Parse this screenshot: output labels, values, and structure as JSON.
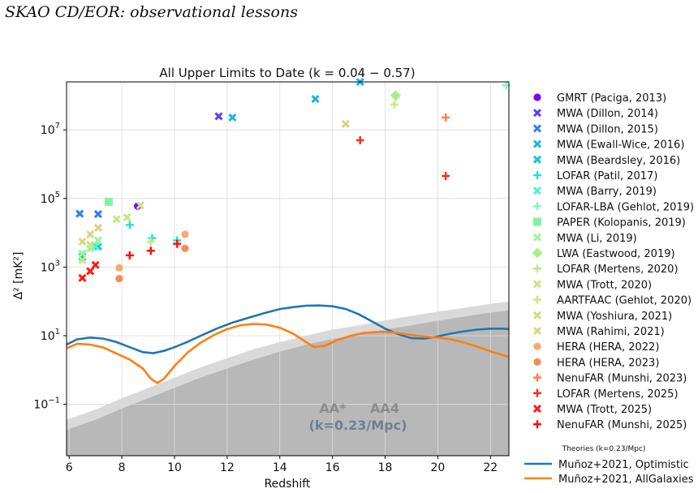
{
  "header": {
    "title": "SKAO CD/EOR: observational lessons"
  },
  "chart_data": {
    "type": "scatter",
    "title": "All Upper Limits to Date (k = 0.04 − 0.57)",
    "xlabel": "Redshift",
    "ylabel": "Δ² [mK²]",
    "xlim": [
      5.9,
      22.7
    ],
    "ylim_log10": [
      -2.5,
      3.4
    ],
    "x_ticks": [
      6,
      8,
      10,
      12,
      14,
      16,
      18,
      20,
      22
    ],
    "y_ticks": [
      {
        "label": "10",
        "exp": "−1",
        "value": 0.1
      },
      {
        "label": "10",
        "exp": "1",
        "value": 10
      },
      {
        "label": "10",
        "exp": "3",
        "value": 1000
      },
      {
        "label": "10",
        "exp": "5",
        "value": 100000
      },
      {
        "label": "10",
        "exp": "7",
        "value": 10000000
      }
    ],
    "grid": true,
    "legend_position": "right, outside plot",
    "series": [
      {
        "name": "GMRT (Paciga, 2013)",
        "marker": "circle",
        "color": "#8000ff",
        "points": [
          [
            8.6,
            60000
          ]
        ]
      },
      {
        "name": "MWA (Dillon, 2014)",
        "marker": "x",
        "color": "#5a3ff2",
        "points": [
          [
            11.68,
            25000000
          ]
        ]
      },
      {
        "name": "MWA (Dillon, 2015)",
        "marker": "x",
        "color": "#2a7ff0",
        "points": [
          [
            6.4,
            36000
          ],
          [
            7.1,
            35000
          ]
        ]
      },
      {
        "name": "MWA (Ewall-Wice, 2016)",
        "marker": "x",
        "color": "#17b6e8",
        "points": [
          [
            12.2,
            23000000
          ],
          [
            15.35,
            80000000
          ],
          [
            17.05,
            250000000
          ]
        ]
      },
      {
        "name": "MWA (Beardsley, 2016)",
        "marker": "x",
        "color": "#10c4df",
        "points": [
          [
            6.5,
            2000
          ],
          [
            7.1,
            4000
          ]
        ]
      },
      {
        "name": "LOFAR (Patil, 2017)",
        "marker": "plus",
        "color": "#25e1e1",
        "points": [
          [
            8.3,
            17000
          ],
          [
            9.15,
            7000
          ],
          [
            10.1,
            6000
          ]
        ]
      },
      {
        "name": "MWA (Barry, 2019)",
        "marker": "x",
        "color": "#50f0d0",
        "points": [
          [
            7.0,
            4000
          ]
        ]
      },
      {
        "name": "LOFAR-LBA (Gehlot, 2019)",
        "marker": "plus",
        "color": "#7ff7ba",
        "points": [
          [
            22.6,
            200000000
          ]
        ]
      },
      {
        "name": "PAPER (Kolopanis, 2019)",
        "marker": "square",
        "color": "#80f3a0",
        "points": [
          [
            7.5,
            80000
          ]
        ]
      },
      {
        "name": "MWA (Li, 2019)",
        "marker": "x",
        "color": "#9cf598",
        "points": [
          [
            6.5,
            2500
          ],
          [
            6.8,
            3500
          ],
          [
            7.1,
            6000
          ]
        ]
      },
      {
        "name": "LWA (Eastwood, 2019)",
        "marker": "diamond",
        "color": "#a8ee8a",
        "points": [
          [
            18.4,
            100000000
          ]
        ]
      },
      {
        "name": "LOFAR (Mertens, 2020)",
        "marker": "plus",
        "color": "#b8ec82",
        "points": [
          [
            9.1,
            5500
          ]
        ]
      },
      {
        "name": "MWA (Trott, 2020)",
        "marker": "x",
        "color": "#c4e884",
        "points": [
          [
            6.5,
            1600
          ],
          [
            6.8,
            4500
          ],
          [
            7.8,
            25000
          ],
          [
            8.2,
            28000
          ],
          [
            8.7,
            63000
          ]
        ]
      },
      {
        "name": "AARTFAAC (Gehlot, 2020)",
        "marker": "plus",
        "color": "#c8e97e",
        "points": [
          [
            18.35,
            55000000
          ]
        ]
      },
      {
        "name": "MWA (Yoshiura, 2021)",
        "marker": "x",
        "color": "#d2dc7e",
        "points": [
          [
            6.5,
            5500
          ]
        ]
      },
      {
        "name": "MWA (Rahimi, 2021)",
        "marker": "x",
        "color": "#d8d583",
        "points": [
          [
            6.8,
            9000
          ],
          [
            7.1,
            14000
          ],
          [
            16.5,
            15000000
          ]
        ]
      },
      {
        "name": "HERA (HERA, 2022)",
        "marker": "circle",
        "color": "#f4ab6c",
        "points": [
          [
            7.9,
            950
          ],
          [
            10.4,
            9000
          ]
        ]
      },
      {
        "name": "HERA (HERA, 2023)",
        "marker": "circle",
        "color": "#f48c55",
        "points": [
          [
            7.9,
            460
          ],
          [
            10.4,
            3500
          ]
        ]
      },
      {
        "name": "NenuFAR (Munshi, 2023)",
        "marker": "plus",
        "color": "#ff7f45",
        "points": [
          [
            20.3,
            23000000
          ]
        ]
      },
      {
        "name": "LOFAR (Mertens, 2025)",
        "marker": "plus",
        "color": "#ff2f1a",
        "points": [
          [
            17.05,
            5000000
          ],
          [
            20.3,
            450000
          ]
        ]
      },
      {
        "name": "MWA (Trott, 2025)",
        "marker": "x",
        "color": "#ff1a10",
        "points": [
          [
            6.5,
            480
          ],
          [
            6.8,
            760
          ],
          [
            7.0,
            1150
          ]
        ]
      },
      {
        "name": "NenuFAR (Munshi, 2025)",
        "marker": "plus",
        "color": "#ff0d0d",
        "points": [
          [
            8.3,
            2200
          ],
          [
            9.1,
            3000
          ],
          [
            10.1,
            4800
          ]
        ]
      }
    ],
    "theories": {
      "title": "Theories (k=0.23/Mpc)",
      "lines": [
        {
          "name": "Muñoz+2021, Optimistic",
          "color": "#1f77b4",
          "points": [
            [
              5.9,
              5.5
            ],
            [
              6.3,
              7.8
            ],
            [
              6.8,
              8.8
            ],
            [
              7.3,
              8.2
            ],
            [
              7.8,
              6.5
            ],
            [
              8.3,
              4.6
            ],
            [
              8.8,
              3.3
            ],
            [
              9.2,
              3.1
            ],
            [
              9.6,
              3.6
            ],
            [
              10.0,
              4.6
            ],
            [
              10.5,
              6.6
            ],
            [
              11.0,
              10
            ],
            [
              11.6,
              16
            ],
            [
              12.2,
              24
            ],
            [
              12.8,
              33
            ],
            [
              13.4,
              45
            ],
            [
              14.0,
              60
            ],
            [
              14.5,
              68
            ],
            [
              15.0,
              75
            ],
            [
              15.5,
              76
            ],
            [
              16.0,
              72
            ],
            [
              16.5,
              60
            ],
            [
              17.0,
              42
            ],
            [
              17.5,
              26
            ],
            [
              18.0,
              16
            ],
            [
              18.5,
              11
            ],
            [
              19.0,
              8.5
            ],
            [
              19.5,
              8.2
            ],
            [
              20.0,
              9.5
            ],
            [
              20.5,
              11.5
            ],
            [
              21.0,
              13.5
            ],
            [
              21.5,
              15
            ],
            [
              22.0,
              16
            ],
            [
              22.5,
              16
            ],
            [
              22.7,
              15.5
            ]
          ]
        },
        {
          "name": "Muñoz+2021, AllGalaxies",
          "color": "#ff7f0e",
          "points": [
            [
              5.9,
              4.3
            ],
            [
              6.3,
              5.8
            ],
            [
              6.8,
              5.5
            ],
            [
              7.3,
              4.5
            ],
            [
              7.8,
              3.0
            ],
            [
              8.3,
              2.0
            ],
            [
              8.8,
              1.1
            ],
            [
              9.1,
              0.55
            ],
            [
              9.35,
              0.42
            ],
            [
              9.6,
              0.55
            ],
            [
              10.0,
              1.3
            ],
            [
              10.5,
              3.2
            ],
            [
              11.0,
              6.3
            ],
            [
              11.5,
              10.5
            ],
            [
              12.0,
              15.5
            ],
            [
              12.5,
              20
            ],
            [
              13.0,
              22
            ],
            [
              13.5,
              21
            ],
            [
              14.0,
              17
            ],
            [
              14.5,
              11.5
            ],
            [
              15.0,
              6.5
            ],
            [
              15.3,
              4.7
            ],
            [
              15.7,
              5.0
            ],
            [
              16.2,
              7.5
            ],
            [
              16.7,
              10
            ],
            [
              17.2,
              12
            ],
            [
              17.8,
              13
            ],
            [
              18.3,
              12.5
            ],
            [
              19.0,
              10.5
            ],
            [
              19.5,
              9.4
            ],
            [
              20.0,
              8.8
            ],
            [
              20.5,
              7.8
            ],
            [
              21.0,
              6.3
            ],
            [
              21.5,
              4.8
            ],
            [
              22.0,
              3.5
            ],
            [
              22.7,
              2.4
            ]
          ]
        }
      ]
    },
    "sensitivity": {
      "labels": [
        "AA*",
        "AA4"
      ],
      "note": "(k=0.23/Mpc)",
      "aa_star": [
        [
          5.9,
          0.035
        ],
        [
          7,
          0.07
        ],
        [
          8,
          0.15
        ],
        [
          9,
          0.3
        ],
        [
          10,
          0.6
        ],
        [
          11,
          1.2
        ],
        [
          12,
          2.2
        ],
        [
          13,
          4
        ],
        [
          14,
          6.5
        ],
        [
          15,
          10
        ],
        [
          16,
          15
        ],
        [
          17,
          20
        ],
        [
          18,
          28
        ],
        [
          19,
          38
        ],
        [
          20,
          50
        ],
        [
          21,
          65
        ],
        [
          22,
          85
        ],
        [
          22.7,
          100
        ]
      ],
      "aa4": [
        [
          5.9,
          0.018
        ],
        [
          7,
          0.035
        ],
        [
          8,
          0.075
        ],
        [
          9,
          0.15
        ],
        [
          10,
          0.3
        ],
        [
          11,
          0.6
        ],
        [
          12,
          1.1
        ],
        [
          13,
          2
        ],
        [
          14,
          3.4
        ],
        [
          15,
          5.5
        ],
        [
          16,
          8
        ],
        [
          17,
          11
        ],
        [
          18,
          15
        ],
        [
          19,
          20
        ],
        [
          20,
          27
        ],
        [
          21,
          36
        ],
        [
          22,
          47
        ],
        [
          22.7,
          55
        ]
      ],
      "colors": {
        "aa_star": "#d9d9d9",
        "aa4": "#b8b8b8",
        "label": "#8c8c8c",
        "note": "#6f7f94"
      }
    }
  }
}
